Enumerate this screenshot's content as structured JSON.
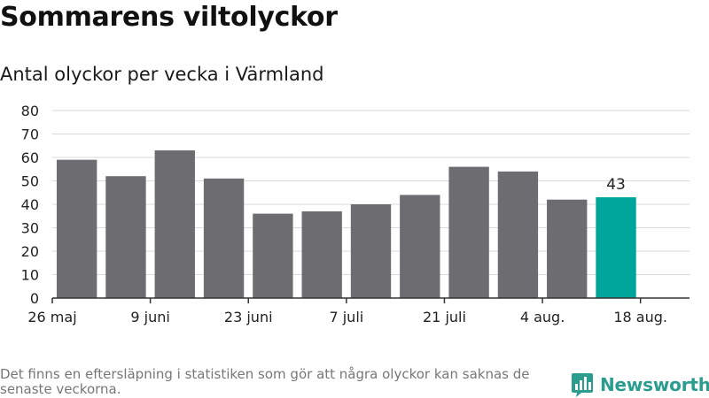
{
  "title": "Sommarens viltolyckor",
  "subtitle": "Antal olyckor per vecka i Värmland",
  "footnote": "Det finns en eftersläpning i statistiken som gör att några olyckor kan saknas de senaste veckorna.",
  "brand": {
    "name": "Newsworthy",
    "icon": "bar-chart-icon",
    "color": "#2a9d8f"
  },
  "colors": {
    "bar": "#6d6c71",
    "highlight": "#00a59a",
    "grid": "#d9d9d9",
    "axis": "#333333"
  },
  "chart_data": {
    "type": "bar",
    "title": "Sommarens viltolyckor",
    "subtitle": "Antal olyckor per vecka i Värmland",
    "xlabel": "",
    "ylabel": "",
    "ylim": [
      0,
      80
    ],
    "yticks": [
      0,
      10,
      20,
      30,
      40,
      50,
      60,
      70,
      80
    ],
    "xlim": [
      0,
      13
    ],
    "x_tick_labels": [
      {
        "label": "26 maj",
        "at": 0
      },
      {
        "label": "9 juni",
        "at": 2
      },
      {
        "label": "23 juni",
        "at": 4
      },
      {
        "label": "7 juli",
        "at": 6
      },
      {
        "label": "21 juli",
        "at": 8
      },
      {
        "label": "4 aug.",
        "at": 10
      },
      {
        "label": "18 aug.",
        "at": 12
      }
    ],
    "values": [
      59,
      52,
      63,
      51,
      36,
      37,
      40,
      44,
      56,
      54,
      42,
      43
    ],
    "highlight_index": 11,
    "highlight_label": "43",
    "grid": true,
    "legend": "none"
  }
}
